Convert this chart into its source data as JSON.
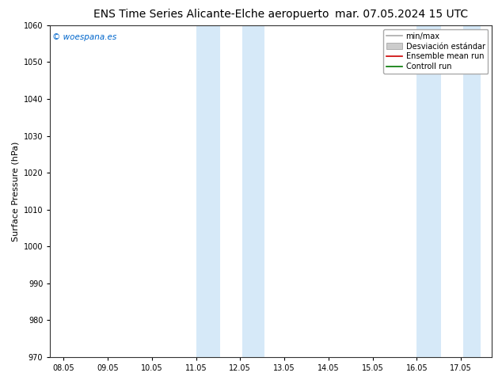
{
  "title_left": "ENS Time Series Alicante-Elche aeropuerto",
  "title_right": "mar. 07.05.2024 15 UTC",
  "ylabel": "Surface Pressure (hPa)",
  "ylim": [
    970,
    1060
  ],
  "yticks": [
    970,
    980,
    990,
    1000,
    1010,
    1020,
    1030,
    1040,
    1050,
    1060
  ],
  "xtick_labels": [
    "08.05",
    "09.05",
    "10.05",
    "11.05",
    "12.05",
    "13.05",
    "14.05",
    "15.05",
    "16.05",
    "17.05"
  ],
  "xlim_start": "2024-05-08",
  "xlim_end": "2024-05-17 12:00",
  "shaded_bands": [
    {
      "x_start": "2024-05-11 00:00",
      "x_end": "2024-05-11 18:00"
    },
    {
      "x_start": "2024-05-12 00:00",
      "x_end": "2024-05-12 18:00"
    },
    {
      "x_start": "2024-05-16 00:00",
      "x_end": "2024-05-16 18:00"
    },
    {
      "x_start": "2024-05-17 00:00",
      "x_end": "2024-05-17 06:00"
    }
  ],
  "shade_color": "#d6e9f8",
  "legend_line1_label": "min/max",
  "legend_line1_color": "#aaaaaa",
  "legend_box_label": "Desviación estándar",
  "legend_box_color": "#cccccc",
  "legend_red_label": "Ensemble mean run",
  "legend_red_color": "#cc0000",
  "legend_green_label": "Controll run",
  "legend_green_color": "#007700",
  "watermark": "© woespana.es",
  "watermark_color": "#0066cc",
  "bg_color": "#ffffff",
  "title_fontsize": 10,
  "tick_fontsize": 7,
  "ylabel_fontsize": 8,
  "legend_fontsize": 7
}
